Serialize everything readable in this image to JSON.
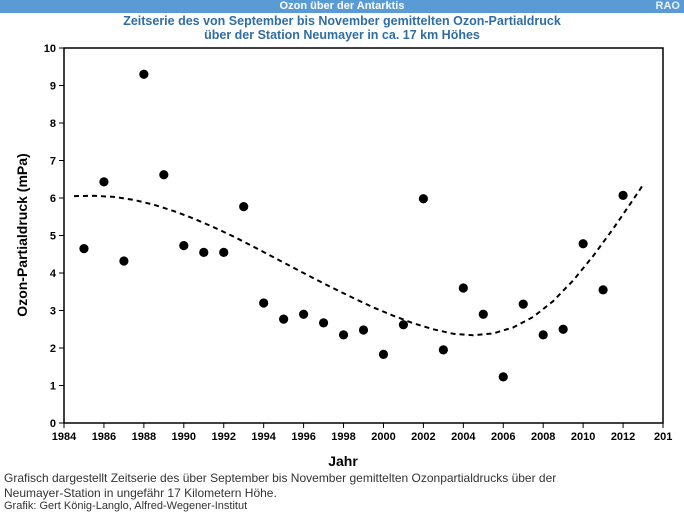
{
  "header": {
    "title": "Ozon über der Antarktis",
    "badge": "RAO"
  },
  "chart_data": {
    "type": "scatter",
    "title": "Zeitserie des von September bis November gemittelten Ozon-Partialdruck",
    "subtitle": "über der Station Neumayer in ca. 17 km Höhes",
    "xlabel": "Jahr",
    "ylabel": "Ozon-Partialdruck (mPa)",
    "xlim": [
      1984,
      2014
    ],
    "ylim": [
      0,
      10
    ],
    "x_ticks": [
      1984,
      1986,
      1988,
      1990,
      1992,
      1994,
      1996,
      1998,
      2000,
      2002,
      2004,
      2006,
      2008,
      2010,
      2012
    ],
    "x_tick_last_label": "201",
    "y_ticks": [
      0,
      1,
      2,
      3,
      4,
      5,
      6,
      7,
      8,
      9,
      10
    ],
    "grid": false,
    "legend": "none",
    "series": [
      {
        "x": [
          1985,
          1986,
          1987,
          1988,
          1989,
          1990,
          1991,
          1992,
          1993,
          1994,
          1995,
          1996,
          1997,
          1998,
          1999,
          2000,
          2001,
          2002,
          2003,
          2004,
          2005,
          2006,
          2007,
          2008,
          2009,
          2010,
          2011,
          2012
        ],
        "y": [
          4.65,
          6.43,
          4.32,
          9.3,
          6.62,
          4.73,
          4.55,
          4.55,
          5.77,
          3.2,
          2.77,
          2.9,
          2.67,
          2.35,
          2.48,
          1.83,
          2.62,
          5.98,
          1.95,
          3.6,
          2.9,
          1.23,
          3.17,
          2.35,
          2.5,
          4.78,
          3.55,
          6.07
        ]
      }
    ],
    "trend": {
      "style": "dashed",
      "x": [
        1984.5,
        1985.5,
        1986.5,
        1987.5,
        1988.5,
        1989.5,
        1990.5,
        1991.5,
        1992.5,
        1993.5,
        1994.5,
        1995.5,
        1996.5,
        1997.5,
        1998.5,
        1999.5,
        2000.5,
        2001.5,
        2002.5,
        2003.5,
        2004.5,
        2005.5,
        2006.5,
        2007.5,
        2008.5,
        2009.5,
        2010.5,
        2011.5,
        2012.5,
        2013
      ],
      "y": [
        6.05,
        6.06,
        6.03,
        5.95,
        5.82,
        5.65,
        5.45,
        5.22,
        4.97,
        4.7,
        4.42,
        4.14,
        3.86,
        3.59,
        3.33,
        3.08,
        2.86,
        2.66,
        2.5,
        2.38,
        2.34,
        2.39,
        2.55,
        2.83,
        3.25,
        3.8,
        4.45,
        5.18,
        5.95,
        6.35
      ]
    },
    "colors": {
      "points": "#000000",
      "trend": "#000000",
      "title": "#2f6ea3",
      "header": "#5b9bd5"
    }
  },
  "caption": {
    "line1": "Grafisch dargestellt Zeitserie des über September bis November gemittelten Ozonpartialdrucks über der",
    "line2": "Neumayer-Station in ungefähr 17 Kilometern Höhe.",
    "credit": "Grafik: Gert König-Langlo, Alfred-Wegener-Institut"
  }
}
